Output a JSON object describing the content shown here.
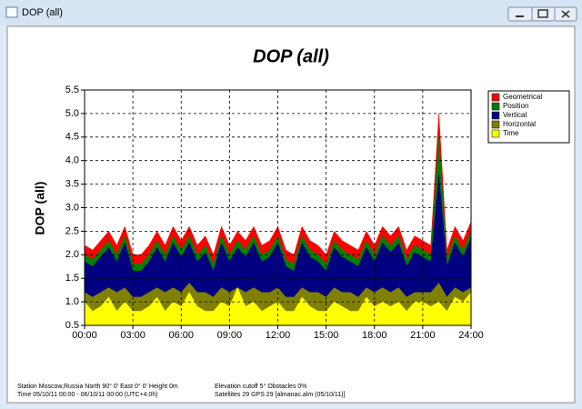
{
  "window": {
    "title": "DOP (all)"
  },
  "chart_data": {
    "type": "area",
    "title": "DOP (all)",
    "y_label": "DOP (all)",
    "x": [
      0,
      0.5,
      1,
      1.5,
      2,
      2.5,
      3,
      3.5,
      4,
      4.5,
      5,
      5.5,
      6,
      6.5,
      7,
      7.5,
      8,
      8.5,
      9,
      9.5,
      10,
      10.5,
      11,
      11.5,
      12,
      12.5,
      13,
      13.5,
      14,
      14.5,
      15,
      15.5,
      16,
      16.5,
      17,
      17.5,
      18,
      18.5,
      19,
      19.5,
      20,
      20.5,
      21,
      21.5,
      22,
      22.5,
      23,
      23.5,
      24
    ],
    "series": [
      {
        "name": "Geometrical",
        "color": "#ff0000",
        "values": [
          2.2,
          2.1,
          2.3,
          2.5,
          2.2,
          2.6,
          2.0,
          2.0,
          2.2,
          2.5,
          2.2,
          2.6,
          2.3,
          2.6,
          2.2,
          2.4,
          2.0,
          2.6,
          2.2,
          2.5,
          2.3,
          2.6,
          2.2,
          2.3,
          2.6,
          2.1,
          2.0,
          2.6,
          2.3,
          2.2,
          2.0,
          2.5,
          2.3,
          2.2,
          2.1,
          2.5,
          2.2,
          2.6,
          2.4,
          2.6,
          2.1,
          2.4,
          2.3,
          2.2,
          5.0,
          2.1,
          2.6,
          2.3,
          2.7
        ]
      },
      {
        "name": "Position",
        "color": "#008000",
        "values": [
          2.0,
          1.9,
          2.1,
          2.3,
          2.0,
          2.4,
          1.8,
          1.8,
          2.0,
          2.3,
          2.0,
          2.4,
          2.1,
          2.4,
          2.0,
          2.2,
          1.8,
          2.4,
          2.0,
          2.3,
          2.1,
          2.4,
          2.0,
          2.1,
          2.4,
          1.9,
          1.8,
          2.4,
          2.1,
          2.0,
          1.8,
          2.3,
          2.1,
          2.0,
          1.9,
          2.3,
          2.0,
          2.4,
          2.2,
          2.4,
          1.9,
          2.2,
          2.1,
          2.0,
          4.5,
          1.9,
          2.4,
          2.1,
          2.5
        ]
      },
      {
        "name": "Vertical",
        "color": "#000080",
        "values": [
          1.85,
          1.75,
          1.95,
          2.15,
          1.85,
          2.25,
          1.65,
          1.65,
          1.85,
          2.15,
          1.85,
          2.25,
          1.95,
          2.25,
          1.85,
          2.05,
          1.65,
          2.25,
          1.85,
          2.15,
          1.95,
          2.25,
          1.85,
          1.95,
          2.25,
          1.75,
          1.65,
          2.25,
          1.95,
          1.85,
          1.65,
          2.15,
          1.95,
          1.85,
          1.75,
          2.15,
          1.85,
          2.25,
          2.05,
          2.25,
          1.75,
          2.05,
          1.95,
          1.85,
          3.7,
          1.75,
          2.25,
          1.95,
          2.35
        ]
      },
      {
        "name": "Horizontal",
        "color": "#808000",
        "values": [
          1.2,
          1.1,
          1.2,
          1.3,
          1.2,
          1.3,
          1.1,
          1.1,
          1.2,
          1.3,
          1.2,
          1.3,
          1.2,
          1.4,
          1.2,
          1.2,
          1.1,
          1.3,
          1.2,
          1.3,
          1.2,
          1.3,
          1.2,
          1.2,
          1.3,
          1.1,
          1.1,
          1.3,
          1.2,
          1.2,
          1.1,
          1.3,
          1.2,
          1.2,
          1.1,
          1.3,
          1.2,
          1.3,
          1.2,
          1.3,
          1.1,
          1.2,
          1.2,
          1.2,
          1.4,
          1.1,
          1.3,
          1.2,
          1.3
        ]
      },
      {
        "name": "Time",
        "color": "#ffff00",
        "values": [
          1.0,
          0.8,
          0.9,
          1.1,
          0.8,
          1.0,
          0.8,
          0.8,
          0.9,
          1.1,
          0.8,
          1.0,
          0.9,
          1.2,
          0.9,
          0.8,
          0.8,
          1.0,
          0.9,
          1.3,
          0.9,
          1.0,
          0.8,
          0.9,
          1.0,
          0.8,
          0.8,
          1.1,
          0.9,
          0.8,
          0.8,
          1.0,
          0.9,
          0.8,
          0.8,
          1.1,
          0.9,
          1.0,
          0.9,
          1.0,
          0.8,
          1.0,
          1.0,
          0.9,
          1.0,
          0.8,
          1.1,
          1.0,
          1.2
        ]
      }
    ],
    "xlim": [
      0,
      24
    ],
    "xticks": [
      {
        "value": 0,
        "label": "00:00"
      },
      {
        "value": 3,
        "label": "03:00"
      },
      {
        "value": 6,
        "label": "06:00"
      },
      {
        "value": 9,
        "label": "09:00"
      },
      {
        "value": 12,
        "label": "12:00"
      },
      {
        "value": 15,
        "label": "15:00"
      },
      {
        "value": 18,
        "label": "18:00"
      },
      {
        "value": 21,
        "label": "21:00"
      },
      {
        "value": 24,
        "label": "24:00"
      }
    ],
    "ylim": [
      0.5,
      5.5
    ],
    "yticks": [
      0.5,
      {
        "value": 1,
        "label": "1.0"
      },
      1.5,
      {
        "value": 2,
        "label": "2.0"
      },
      2.5,
      {
        "value": 3,
        "label": "3.0"
      },
      3.5,
      {
        "value": 4,
        "label": "4.0"
      },
      4.5,
      {
        "value": 5,
        "label": "5.0"
      },
      5.5
    ],
    "grid": true,
    "legend": "right"
  },
  "footer": {
    "station": "Station Moscow,Russia  North 90° 0'   East 0° 0'   Height 0m",
    "elevation": "Elevation cutoff 5°   Obstacles 0%",
    "time": "Time 05/10/11 00:00 -  06/10/11 00:00 (UTC+4.0h)",
    "satellites": "Satellites 29  GPS 29  [almanac.alm (05/10/11)]"
  }
}
